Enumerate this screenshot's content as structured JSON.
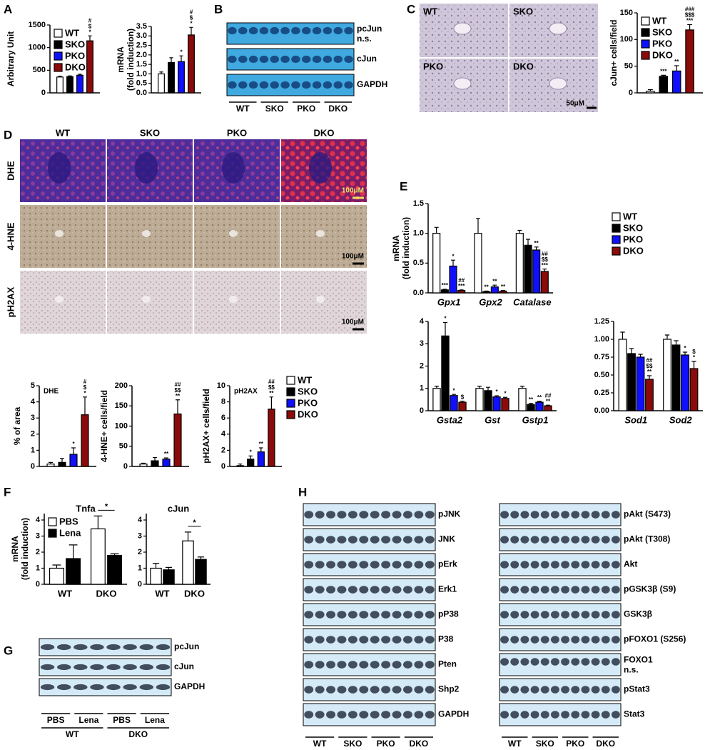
{
  "panel_labels": [
    "A",
    "B",
    "C",
    "D",
    "E",
    "F",
    "G",
    "H"
  ],
  "chart_data": [
    {
      "type": "bar",
      "ylabel": "Arbitrary Unit",
      "categories": [
        null
      ],
      "ylim": [
        0,
        1500
      ],
      "yticks": [
        0,
        500,
        1000,
        1500
      ],
      "legend": "upper left",
      "series": [
        {
          "name": "WT",
          "color": "#ffffff",
          "values": [
            350
          ],
          "errors": [
            20
          ]
        },
        {
          "name": "SKO",
          "color": "#000000",
          "values": [
            360
          ],
          "errors": [
            15
          ]
        },
        {
          "name": "PKO",
          "color": "#1010ff",
          "values": [
            390
          ],
          "errors": [
            20
          ]
        },
        {
          "name": "DKO",
          "color": "#8b0a0a",
          "values": [
            1150
          ],
          "errors": [
            110
          ],
          "labels": [
            [
              "#",
              "$",
              "*"
            ]
          ]
        }
      ]
    },
    {
      "type": "bar",
      "ylabel": [
        "mRNA",
        "(fold induction)"
      ],
      "categories": [
        null
      ],
      "ylim": [
        0,
        3.5
      ],
      "yticks": [
        {
          "value": 0,
          "label": "0.0"
        },
        0.5,
        {
          "value": 1,
          "label": "1.0"
        },
        1.5,
        {
          "value": 2,
          "label": "2.0"
        },
        2.5,
        {
          "value": 3,
          "label": "3.0"
        },
        3.5
      ],
      "series": [
        {
          "color": "#ffffff",
          "values": [
            1
          ],
          "errors": [
            0.1
          ]
        },
        {
          "color": "#000000",
          "values": [
            1.6
          ],
          "errors": [
            0.25
          ]
        },
        {
          "color": "#1010ff",
          "values": [
            1.65
          ],
          "errors": [
            0.3
          ],
          "labels": [
            [
              "*"
            ]
          ]
        },
        {
          "color": "#8b0a0a",
          "values": [
            3.05
          ],
          "errors": [
            0.4
          ],
          "labels": [
            [
              "#",
              "$",
              "*"
            ]
          ]
        }
      ]
    },
    {
      "type": "bar",
      "ylabel": "cJun+ cells/field",
      "categories": [
        null
      ],
      "ylim": [
        0,
        150
      ],
      "yticks": [
        0,
        50,
        100,
        150
      ],
      "legend": "upper left",
      "series": [
        {
          "name": "WT",
          "color": "#ffffff",
          "values": [
            3
          ],
          "errors": [
            3
          ]
        },
        {
          "name": "SKO",
          "color": "#000000",
          "values": [
            31
          ],
          "errors": [
            2
          ],
          "labels": [
            [
              "***"
            ]
          ]
        },
        {
          "name": "PKO",
          "color": "#1010ff",
          "values": [
            41
          ],
          "errors": [
            10
          ],
          "labels": [
            [
              "**"
            ]
          ]
        },
        {
          "name": "DKO",
          "color": "#8b0a0a",
          "values": [
            118
          ],
          "errors": [
            10
          ],
          "labels": [
            [
              "###",
              "$$$",
              "***"
            ]
          ]
        }
      ]
    },
    {
      "type": "bar",
      "title": "DHE",
      "title_inside": true,
      "ylabel": "% of area",
      "categories": [
        null
      ],
      "ylim": [
        0,
        5
      ],
      "yticks": [
        0,
        1,
        2,
        3,
        4,
        5
      ],
      "series": [
        {
          "color": "#ffffff",
          "values": [
            0.15
          ],
          "errors": [
            0.1
          ]
        },
        {
          "color": "#000000",
          "values": [
            0.25
          ],
          "errors": [
            0.25
          ]
        },
        {
          "color": "#1010ff",
          "values": [
            0.75
          ],
          "errors": [
            0.4
          ],
          "labels": [
            [
              "*"
            ]
          ]
        },
        {
          "color": "#8b0a0a",
          "values": [
            3.2
          ],
          "errors": [
            1.1
          ],
          "labels": [
            [
              "#",
              "$",
              "*"
            ]
          ]
        }
      ]
    },
    {
      "type": "bar",
      "ylabel": "4-HNE+ cells/field",
      "categories": [
        null
      ],
      "ylim": [
        0,
        200
      ],
      "yticks": [
        0,
        50,
        100,
        150,
        200
      ],
      "series": [
        {
          "color": "#ffffff",
          "values": [
            6
          ],
          "errors": [
            2
          ]
        },
        {
          "color": "#000000",
          "values": [
            14
          ],
          "errors": [
            8
          ]
        },
        {
          "color": "#1010ff",
          "values": [
            18
          ],
          "errors": [
            3
          ],
          "labels": [
            [
              "**"
            ]
          ]
        },
        {
          "color": "#8b0a0a",
          "values": [
            130
          ],
          "errors": [
            35
          ],
          "labels": [
            [
              "##",
              "$$",
              "**"
            ]
          ]
        }
      ]
    },
    {
      "type": "bar",
      "title": "pH2AX",
      "title_inside": true,
      "ylabel": "pH2AX+ cells/field",
      "categories": [
        null
      ],
      "ylim": [
        0,
        10
      ],
      "yticks": [
        0,
        2,
        4,
        6,
        8,
        10
      ],
      "legend": "right",
      "series": [
        {
          "name": "WT",
          "color": "#ffffff",
          "values": [
            0.1
          ],
          "errors": [
            0.2
          ]
        },
        {
          "name": "SKO",
          "color": "#000000",
          "values": [
            0.9
          ],
          "errors": [
            0.4
          ],
          "labels": [
            [
              "*"
            ]
          ]
        },
        {
          "name": "PKO",
          "color": "#1010ff",
          "values": [
            1.8
          ],
          "errors": [
            0.5
          ],
          "labels": [
            [
              "**"
            ]
          ]
        },
        {
          "name": "DKO",
          "color": "#8b0a0a",
          "values": [
            7.1
          ],
          "errors": [
            1.5
          ],
          "labels": [
            [
              "##",
              "$$",
              "**"
            ]
          ]
        }
      ]
    },
    {
      "type": "bar",
      "ylabel": [
        "mRNA",
        "(fold induction)"
      ],
      "categories": [
        "Gpx1",
        "Gpx2",
        "Catalase"
      ],
      "italic_categories": true,
      "ylim": [
        0,
        1.5
      ],
      "yticks": [
        {
          "value": 0,
          "label": "0.0"
        },
        0.5,
        {
          "value": 1,
          "label": "1.0"
        },
        1.5
      ],
      "legend": "right",
      "series": [
        {
          "name": "WT",
          "color": "#ffffff",
          "values": [
            1,
            1,
            1
          ],
          "errors": [
            0.1,
            0.25,
            0.05
          ]
        },
        {
          "name": "SKO",
          "color": "#000000",
          "values": [
            0.05,
            0.02,
            0.8
          ],
          "errors": [
            0.01,
            0.01,
            0.1
          ],
          "labels": [
            [
              "***"
            ],
            [
              "**"
            ],
            null
          ]
        },
        {
          "name": "PKO",
          "color": "#1010ff",
          "values": [
            0.45,
            0.1,
            0.72
          ],
          "errors": [
            0.1,
            0.03,
            0.05
          ],
          "labels": [
            [
              "*"
            ],
            [
              "**"
            ],
            [
              "**"
            ]
          ]
        },
        {
          "name": "DKO",
          "color": "#8b0a0a",
          "values": [
            0.04,
            0.03,
            0.36
          ],
          "errors": [
            0.01,
            0.01,
            0.04
          ],
          "labels": [
            [
              "##",
              "***"
            ],
            [
              "**"
            ],
            [
              "##",
              "$$",
              "***"
            ]
          ]
        }
      ]
    },
    {
      "type": "bar",
      "categories": [
        "Gsta2",
        "Gst",
        "Gstp1"
      ],
      "italic_categories": true,
      "ylim": [
        0,
        4
      ],
      "yticks": [
        0,
        1,
        2,
        3,
        4
      ],
      "series": [
        {
          "color": "#ffffff",
          "values": [
            1,
            1,
            1
          ],
          "errors": [
            0.1,
            0.1,
            0.1
          ]
        },
        {
          "color": "#000000",
          "values": [
            3.35,
            0.9,
            0.28
          ],
          "errors": [
            0.6,
            0.15,
            0.05
          ],
          "labels": [
            [
              "*"
            ],
            null,
            [
              "**"
            ]
          ]
        },
        {
          "color": "#1010ff",
          "values": [
            0.68,
            0.62,
            0.38
          ],
          "errors": [
            0.05,
            0.05,
            0.04
          ],
          "labels": [
            [
              "*"
            ],
            [
              "*"
            ],
            [
              "**"
            ]
          ]
        },
        {
          "color": "#8b0a0a",
          "values": [
            0.38,
            0.55,
            0.22
          ],
          "errors": [
            0.05,
            0.05,
            0.03
          ],
          "labels": [
            [
              "$"
            ],
            [
              "*"
            ],
            [
              "##",
              "**"
            ]
          ]
        }
      ]
    },
    {
      "type": "bar",
      "categories": [
        "Sod1",
        "Sod2"
      ],
      "italic_categories": true,
      "ylim": [
        0,
        1.25
      ],
      "yticks": [
        {
          "value": 0,
          "label": "0.00"
        },
        0.25,
        {
          "value": 0.5,
          "label": "0.50"
        },
        0.75,
        {
          "value": 1,
          "label": "1.00"
        },
        1.25
      ],
      "series": [
        {
          "color": "#ffffff",
          "values": [
            1,
            1
          ],
          "errors": [
            0.1,
            0.06
          ]
        },
        {
          "color": "#000000",
          "values": [
            0.8,
            0.92
          ],
          "errors": [
            0.07,
            0.06
          ]
        },
        {
          "color": "#1010ff",
          "values": [
            0.75,
            0.78
          ],
          "errors": [
            0.04,
            0.04
          ],
          "labels": [
            null,
            [
              "*"
            ]
          ]
        },
        {
          "color": "#8b0a0a",
          "values": [
            0.44,
            0.59
          ],
          "errors": [
            0.05,
            0.1
          ],
          "labels": [
            [
              "##",
              "$$",
              "**"
            ],
            [
              "$",
              "*"
            ]
          ]
        }
      ]
    },
    {
      "type": "bar",
      "title": "Tnfa",
      "ylabel": [
        "mRNA",
        "(fold induction)"
      ],
      "categories": [
        "WT",
        "DKO"
      ],
      "ylim": [
        0,
        4.4
      ],
      "yticks": [
        0,
        1,
        2,
        3,
        4
      ],
      "legend": "upper left",
      "group_labels": [
        null,
        "*"
      ],
      "series": [
        {
          "name": "PBS",
          "color": "#ffffff",
          "values": [
            1,
            3.45
          ],
          "errors": [
            0.2,
            0.8
          ]
        },
        {
          "name": "Lena",
          "color": "#000000",
          "values": [
            1.6,
            1.8
          ],
          "errors": [
            0.85,
            0.1
          ]
        }
      ]
    },
    {
      "type": "bar",
      "title": "cJun",
      "categories": [
        "WT",
        "DKO"
      ],
      "ylim": [
        0,
        4.4
      ],
      "yticks": [
        0,
        1,
        2,
        3,
        4
      ],
      "group_labels": [
        null,
        "*"
      ],
      "series": [
        {
          "color": "#ffffff",
          "values": [
            1,
            2.7
          ],
          "errors": [
            0.3,
            0.55
          ]
        },
        {
          "color": "#000000",
          "values": [
            0.9,
            1.55
          ],
          "errors": [
            0.15,
            0.15
          ]
        }
      ]
    }
  ],
  "blots": [
    {
      "rows": [
        [
          "pcJun",
          "n.s."
        ],
        [
          "cJun"
        ],
        [
          "GAPDH"
        ]
      ],
      "groups": [
        "WT",
        "SKO",
        "PKO",
        "DKO"
      ]
    },
    {
      "rows": [
        [
          "pcJun"
        ],
        [
          "cJun"
        ],
        [
          "GAPDH"
        ]
      ],
      "lanes": [
        "PBS",
        "Lena",
        "PBS",
        "Lena"
      ],
      "groups": [
        "WT",
        "DKO"
      ]
    },
    {
      "rows": [
        [
          "pJNK"
        ],
        [
          "JNK"
        ],
        [
          "pErk"
        ],
        [
          "Erk1"
        ],
        [
          "pP38"
        ],
        [
          "P38"
        ],
        [
          "Pten"
        ],
        [
          "Shp2"
        ],
        [
          "GAPDH"
        ]
      ],
      "groups": [
        "WT",
        "SKO",
        "PKO",
        "DKO"
      ]
    },
    {
      "rows": [
        [
          "pAkt (S473)"
        ],
        [
          "pAkt (T308)"
        ],
        [
          "Akt"
        ],
        [
          "pGSK3β (S9)"
        ],
        [
          "GSK3β"
        ],
        [
          "pFOXO1 (S256)"
        ],
        [
          "FOXO1",
          "n.s."
        ],
        [
          "pStat3"
        ],
        [
          "Stat3"
        ]
      ],
      "groups": [
        "WT",
        "SKO",
        "PKO",
        "DKO"
      ]
    }
  ],
  "micrographs": [
    {
      "labels": [
        "WT",
        "SKO",
        "PKO",
        "DKO"
      ],
      "scale": "50μM"
    },
    {
      "columns": [
        "WT",
        "SKO",
        "PKO",
        "DKO"
      ],
      "rows": [
        "DHE",
        "4-HNE",
        "pH2AX"
      ],
      "scales": [
        "100μM",
        "100μM",
        "100μM"
      ]
    }
  ]
}
